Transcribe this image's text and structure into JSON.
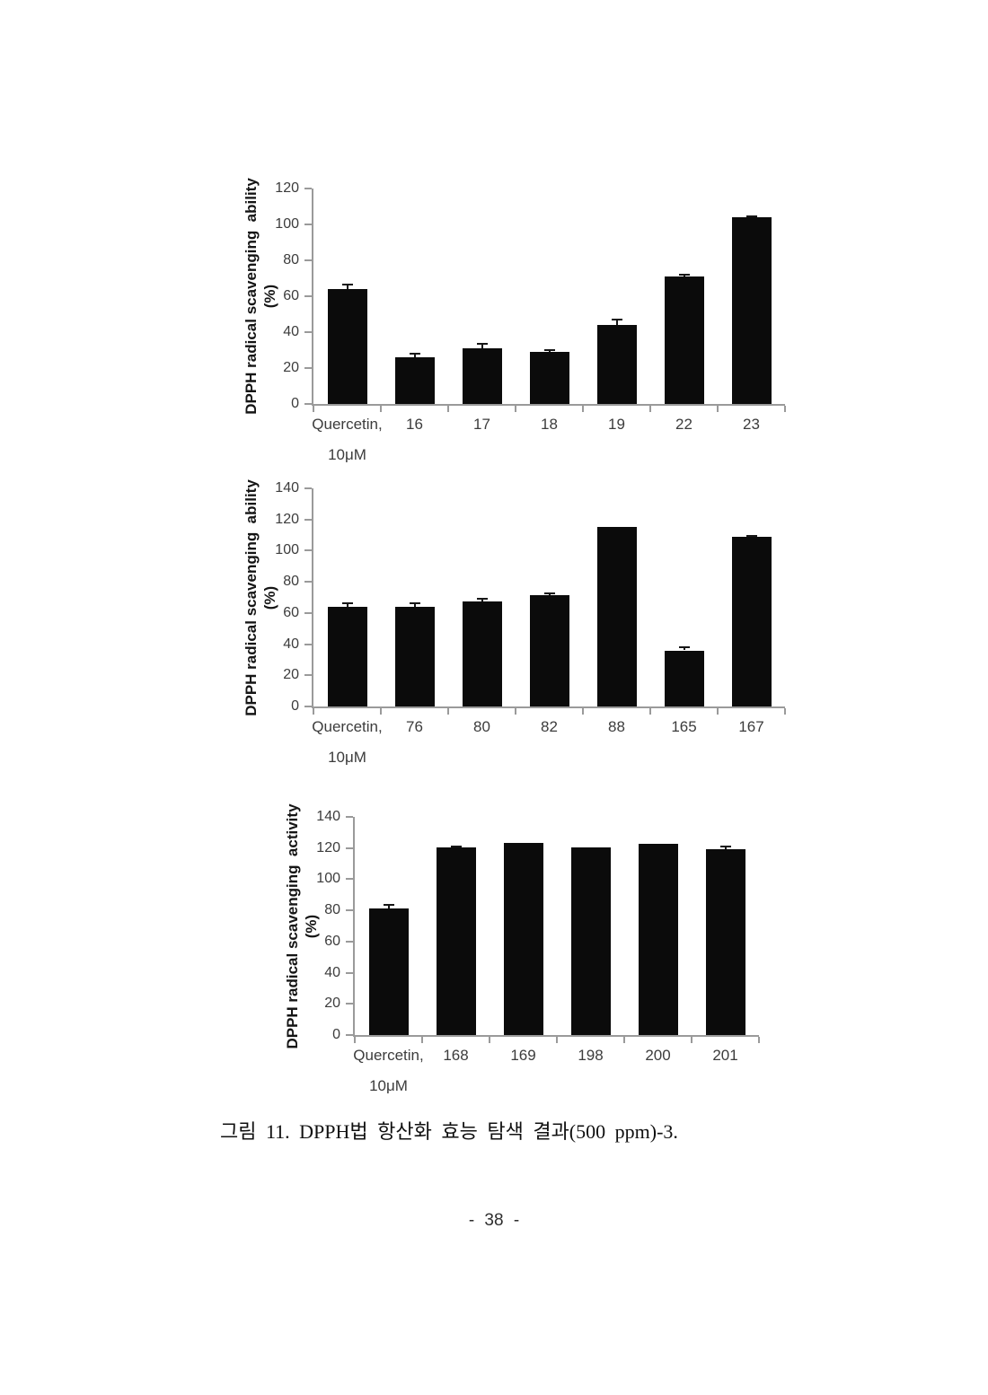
{
  "page": {
    "figure_caption": "그림 11. DPPH법 항산화 효능 탐색 결과(500 ppm)-3.",
    "page_number": "- 38 -"
  },
  "chart_data": [
    {
      "type": "bar",
      "title": "",
      "ylabel": "DPPH radical scavenging  ability",
      "ylabel_unit": "(%)",
      "xlabel": "",
      "ylim": [
        0,
        120
      ],
      "ytick_step": 20,
      "grid": false,
      "legend": "none",
      "bar_color": "#0b0b0b",
      "axis_color": "#9a9a9a",
      "categories": [
        "Quercetin,",
        "16",
        "17",
        "18",
        "19",
        "22",
        "23"
      ],
      "first_category_line2": "10μM",
      "values": [
        64,
        26,
        31,
        29,
        44,
        71,
        104
      ],
      "errors": [
        2.5,
        1.8,
        2.5,
        0.8,
        2.8,
        0.8,
        0.5
      ]
    },
    {
      "type": "bar",
      "title": "",
      "ylabel": "DPPH radical scavenging  ability",
      "ylabel_unit": "(%)",
      "xlabel": "",
      "ylim": [
        0,
        140
      ],
      "ytick_step": 20,
      "grid": false,
      "legend": "none",
      "bar_color": "#0b0b0b",
      "axis_color": "#9a9a9a",
      "categories": [
        "Quercetin,",
        "76",
        "80",
        "82",
        "88",
        "165",
        "167"
      ],
      "first_category_line2": "10μM",
      "values": [
        64,
        64,
        67.5,
        71.5,
        115,
        36,
        109
      ],
      "errors": [
        2.3,
        2,
        1.5,
        1,
        0,
        1.8,
        0.4
      ]
    },
    {
      "type": "bar",
      "title": "",
      "ylabel": "DPPH radical scavenging  activity",
      "ylabel_unit": "(%)",
      "xlabel": "",
      "ylim": [
        0,
        140
      ],
      "ytick_step": 20,
      "grid": false,
      "legend": "none",
      "bar_color": "#0b0b0b",
      "axis_color": "#9a9a9a",
      "categories": [
        "Quercetin,",
        "168",
        "169",
        "198",
        "200",
        "201"
      ],
      "first_category_line2": "10μM",
      "values": [
        81.5,
        120.5,
        123.5,
        120.5,
        122.5,
        119
      ],
      "errors": [
        2,
        0.6,
        0,
        0,
        0,
        1.8
      ]
    }
  ]
}
